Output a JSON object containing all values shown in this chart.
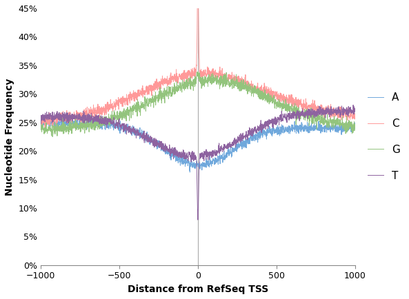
{
  "x_min": -1000,
  "x_max": 1000,
  "y_min": 0.0,
  "y_max": 0.45,
  "xlabel": "Distance from RefSeq TSS",
  "ylabel": "Nucleotide Frequency",
  "yticks": [
    0.0,
    0.05,
    0.1,
    0.15,
    0.2,
    0.25,
    0.3,
    0.35,
    0.4,
    0.45
  ],
  "xticks": [
    -1000,
    -500,
    0,
    500,
    1000
  ],
  "legend_labels": [
    "A",
    "C",
    "G",
    "T"
  ],
  "colors": {
    "A": "#6FA8DC",
    "C": "#FF9999",
    "G": "#93C47D",
    "T": "#8E63A0"
  },
  "linewidth": 0.7,
  "background_color": "#FFFFFF"
}
